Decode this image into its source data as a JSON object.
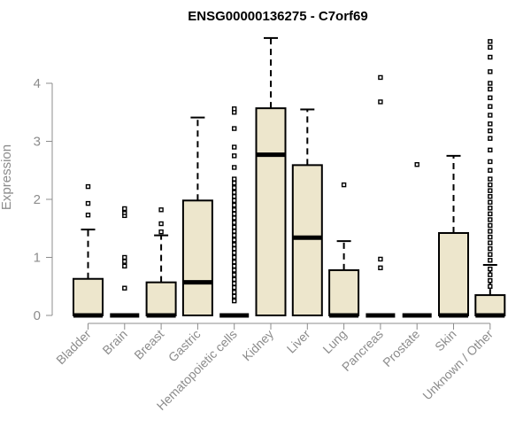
{
  "chart_data": {
    "type": "boxplot",
    "title": "ENSG00000136275 - C7orf69",
    "ylabel": "Expression",
    "xlabel": "",
    "ylim": [
      0,
      4.75
    ],
    "yticks": [
      0,
      1,
      2,
      3,
      4
    ],
    "box_fill": "#ede6cc",
    "categories": [
      "Bladder",
      "Brain",
      "Breast",
      "Gastric",
      "Hematopoietic cells",
      "Kidney",
      "Liver",
      "Lung",
      "Pancreas",
      "Prostate",
      "Skin",
      "Unknown / Other"
    ],
    "boxes": [
      {
        "min": 0,
        "q1": 0,
        "median": 0,
        "q3": 0.63,
        "max": 1.48,
        "outliers": [
          1.73,
          1.93,
          2.22
        ]
      },
      {
        "min": 0,
        "q1": 0,
        "median": 0,
        "q3": 0,
        "max": 0,
        "outliers": [
          0.47,
          0.85,
          0.93,
          1.0,
          1.72,
          1.77,
          1.82,
          1.84
        ]
      },
      {
        "min": 0,
        "q1": 0,
        "median": 0,
        "q3": 0.57,
        "max": 1.38,
        "outliers": [
          1.44,
          1.58,
          1.82
        ]
      },
      {
        "min": 0,
        "q1": 0,
        "median": 0.57,
        "q3": 1.98,
        "max": 3.41,
        "outliers": []
      },
      {
        "min": 0,
        "q1": 0,
        "median": 0,
        "q3": 0,
        "max": 0,
        "outliers": [
          0.25,
          0.33,
          0.4,
          0.48,
          0.55,
          0.62,
          0.7,
          0.78,
          0.85,
          0.92,
          1.0,
          1.08,
          1.15,
          1.22,
          1.3,
          1.38,
          1.45,
          1.52,
          1.6,
          1.68,
          1.75,
          1.82,
          1.9,
          1.98,
          2.05,
          2.12,
          2.2,
          2.28,
          2.35,
          2.55,
          2.75,
          2.9,
          3.22,
          3.5,
          3.56
        ]
      },
      {
        "min": 0,
        "q1": 0,
        "median": 2.77,
        "q3": 3.57,
        "max": 4.78,
        "outliers": []
      },
      {
        "min": 0,
        "q1": 0,
        "median": 1.34,
        "q3": 2.59,
        "max": 3.55,
        "outliers": []
      },
      {
        "min": 0,
        "q1": 0,
        "median": 0,
        "q3": 0.78,
        "max": 1.28,
        "outliers": [
          2.25
        ]
      },
      {
        "min": 0,
        "q1": 0,
        "median": 0,
        "q3": 0,
        "max": 0,
        "outliers": [
          0.82,
          0.97,
          3.68,
          4.1
        ]
      },
      {
        "min": 0,
        "q1": 0,
        "median": 0,
        "q3": 0,
        "max": 0,
        "outliers": [
          2.6
        ]
      },
      {
        "min": 0,
        "q1": 0,
        "median": 0,
        "q3": 1.42,
        "max": 2.75,
        "outliers": []
      },
      {
        "min": 0,
        "q1": 0,
        "median": 0,
        "q3": 0.35,
        "max": 0.87,
        "outliers": [
          0.5,
          0.6,
          0.7,
          0.8,
          0.95,
          1.05,
          1.15,
          1.25,
          1.35,
          1.45,
          1.55,
          1.65,
          1.75,
          1.85,
          1.95,
          2.05,
          2.15,
          2.25,
          2.35,
          2.5,
          2.65,
          2.85,
          3.05,
          3.18,
          3.3,
          3.45,
          3.6,
          3.75,
          3.9,
          4.0,
          4.2,
          4.45,
          4.62,
          4.72
        ]
      }
    ]
  }
}
